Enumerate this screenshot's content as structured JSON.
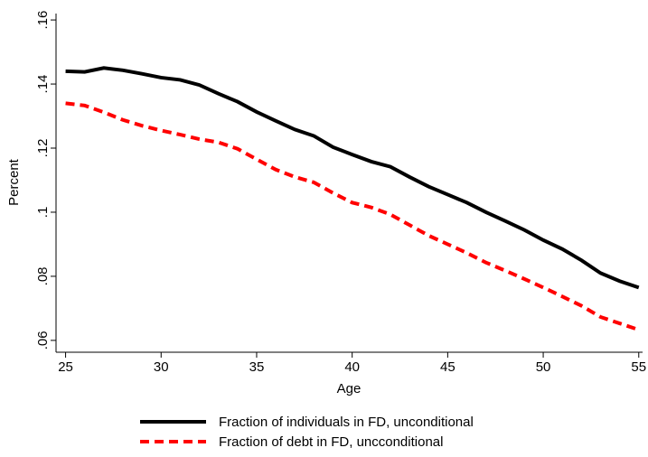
{
  "chart_data": {
    "type": "line",
    "x_label": "Age",
    "y_label": "Percent",
    "x": [
      25,
      26,
      27,
      28,
      29,
      30,
      31,
      32,
      33,
      34,
      35,
      36,
      37,
      38,
      39,
      40,
      41,
      42,
      43,
      44,
      45,
      46,
      47,
      48,
      49,
      50,
      51,
      52,
      53,
      54,
      55
    ],
    "series": [
      {
        "name": "Fraction of individuals in FD, unconditional",
        "color": "#000000",
        "linestyle": "solid",
        "values": [
          0.144,
          0.1438,
          0.145,
          0.1443,
          0.1432,
          0.142,
          0.1413,
          0.1397,
          0.137,
          0.1345,
          0.1313,
          0.1285,
          0.1258,
          0.1238,
          0.1203,
          0.118,
          0.1158,
          0.1142,
          0.111,
          0.108,
          0.1055,
          0.103,
          0.1,
          0.0973,
          0.0945,
          0.0913,
          0.0885,
          0.085,
          0.081,
          0.0785,
          0.0765
        ]
      },
      {
        "name": "Fraction of debt in FD, uncconditional",
        "color": "#ff0000",
        "linestyle": "dashed",
        "values": [
          0.134,
          0.1333,
          0.1312,
          0.1288,
          0.127,
          0.1255,
          0.1242,
          0.1228,
          0.1218,
          0.1198,
          0.1165,
          0.1133,
          0.111,
          0.1093,
          0.106,
          0.103,
          0.1015,
          0.0993,
          0.096,
          0.0927,
          0.09,
          0.0873,
          0.0843,
          0.0818,
          0.0792,
          0.0765,
          0.0737,
          0.0708,
          0.0673,
          0.0653,
          0.0633
        ]
      }
    ],
    "xlim": [
      24.5,
      55.2
    ],
    "xticks": [
      25,
      30,
      35,
      40,
      45,
      50,
      55
    ],
    "ylim": [
      0.0563,
      0.162
    ],
    "yticks": [
      {
        "value": 0.06,
        "label": ".06"
      },
      {
        "value": 0.08,
        "label": ".08"
      },
      {
        "value": 0.1,
        "label": ".1"
      },
      {
        "value": 0.12,
        "label": ".12"
      },
      {
        "value": 0.14,
        "label": ".14"
      },
      {
        "value": 0.16,
        "label": ".16"
      }
    ],
    "legend": "bottom"
  }
}
